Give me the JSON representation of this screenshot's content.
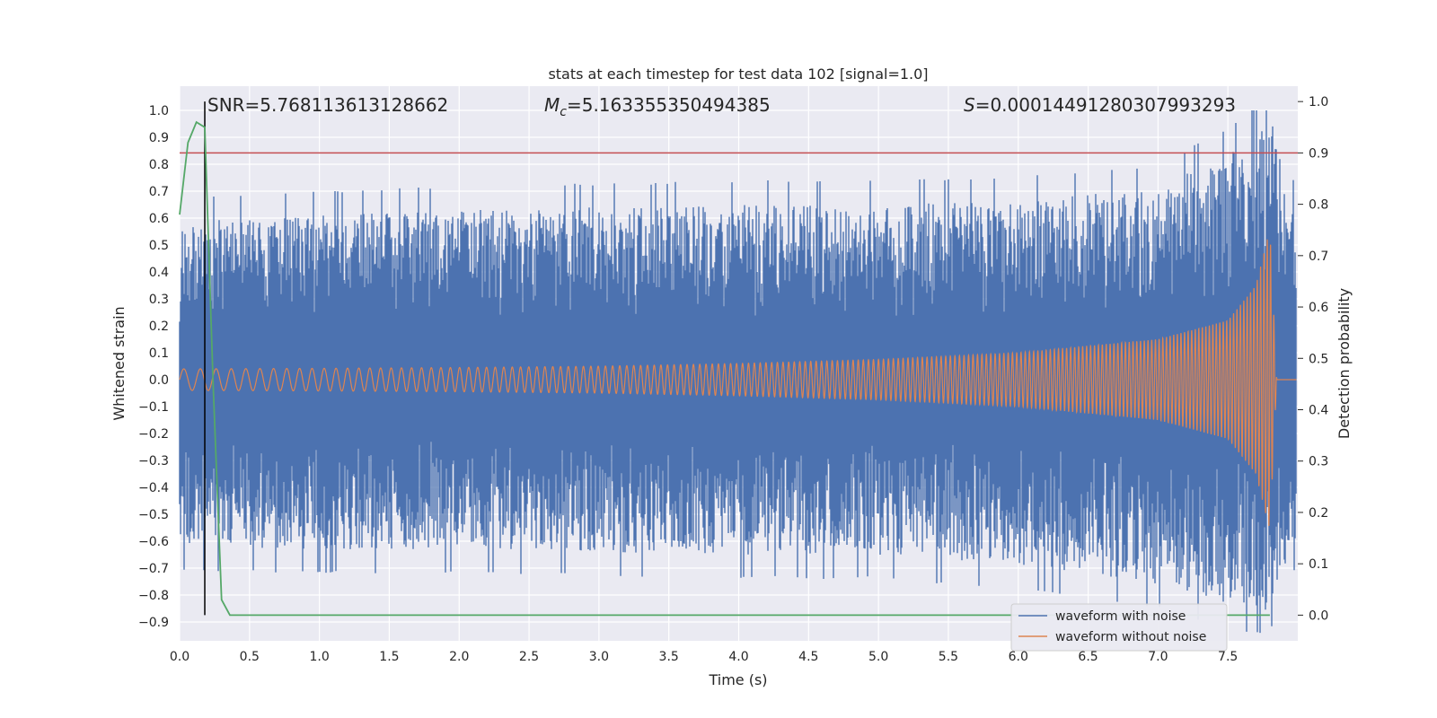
{
  "chart_data": {
    "type": "line",
    "title": "stats at each timestep for test data 102 [signal=1.0]",
    "xlabel": "Time (s)",
    "ylabel": "Whitened strain",
    "y2label": "Detection probability",
    "xlim": [
      0.0,
      8.0
    ],
    "ylim": [
      -0.97,
      1.09
    ],
    "y2lim": [
      -0.05,
      1.03
    ],
    "x_ticks": [
      0.0,
      0.5,
      1.0,
      1.5,
      2.0,
      2.5,
      3.0,
      3.5,
      4.0,
      4.5,
      5.0,
      5.5,
      6.0,
      6.5,
      7.0,
      7.5
    ],
    "x_tick_labels": [
      "0.0",
      "0.5",
      "1.0",
      "1.5",
      "2.0",
      "2.5",
      "3.0",
      "3.5",
      "4.0",
      "4.5",
      "5.0",
      "5.5",
      "6.0",
      "6.5",
      "7.0",
      "7.5"
    ],
    "y_ticks": [
      1.0,
      0.9,
      0.8,
      0.7,
      0.6,
      0.5,
      0.4,
      0.3,
      0.2,
      0.1,
      0.0,
      -0.1,
      -0.2,
      -0.3,
      -0.4,
      -0.5,
      -0.6,
      -0.7,
      -0.8,
      -0.9
    ],
    "y_tick_labels": [
      "1.0",
      "0.9",
      "0.8",
      "0.7",
      "0.6",
      "0.5",
      "0.4",
      "0.3",
      "0.2",
      "0.1",
      "0.0",
      "−0.1",
      "−0.2",
      "−0.3",
      "−0.4",
      "−0.5",
      "−0.6",
      "−0.7",
      "−0.8",
      "−0.9"
    ],
    "y2_ticks": [
      1.0,
      0.9,
      0.8,
      0.7,
      0.6,
      0.5,
      0.4,
      0.3,
      0.2,
      0.1,
      0.0
    ],
    "y2_tick_labels": [
      "1.0",
      "0.9",
      "0.8",
      "0.7",
      "0.6",
      "0.5",
      "0.4",
      "0.3",
      "0.2",
      "0.1",
      "0.0"
    ],
    "grid": true,
    "legend_position": "lower-right",
    "annotations": {
      "snr": "SNR=5.768113613128662",
      "mc_symbol": "M",
      "mc_sub": "c",
      "mc_value": "=5.163355350494385",
      "s_symbol": "S",
      "s_value": "=0.00014491280307993293"
    },
    "vertical_marker_x": 0.18,
    "threshold_probability": 0.9,
    "series": [
      {
        "name": "waveform with noise",
        "color": "#4c72b0",
        "envelope_description_points": {
          "x": [
            0.0,
            1.0,
            2.0,
            3.0,
            4.0,
            5.0,
            6.0,
            7.0,
            7.5,
            7.8,
            7.85,
            8.0
          ],
          "upper": [
            0.6,
            0.62,
            0.64,
            0.65,
            0.66,
            0.66,
            0.68,
            0.72,
            0.86,
            1.0,
            0.9,
            0.6
          ],
          "lower": [
            -0.63,
            -0.64,
            -0.64,
            -0.65,
            -0.66,
            -0.66,
            -0.7,
            -0.77,
            -0.85,
            -0.87,
            -0.78,
            -0.6
          ]
        }
      },
      {
        "name": "waveform without noise",
        "color": "#dd8452",
        "envelope_description_points": {
          "x": [
            0.0,
            1.0,
            2.0,
            3.0,
            4.0,
            5.0,
            6.0,
            7.0,
            7.5,
            7.7,
            7.8,
            7.85,
            8.0
          ],
          "amplitude": [
            0.04,
            0.042,
            0.045,
            0.05,
            0.06,
            0.075,
            0.1,
            0.15,
            0.22,
            0.35,
            0.56,
            0.0,
            0.0
          ]
        }
      },
      {
        "name": "detection probability",
        "color": "#55a868",
        "axis": "right",
        "x": [
          0.0,
          0.06,
          0.12,
          0.18,
          0.24,
          0.3,
          0.36,
          0.42,
          1.0,
          2.0,
          3.0,
          4.0,
          5.0,
          6.0,
          7.0,
          7.8
        ],
        "values": [
          0.78,
          0.92,
          0.96,
          0.95,
          0.45,
          0.03,
          0.0,
          0.0,
          0.0,
          0.0,
          0.0,
          0.0,
          0.0,
          0.0,
          0.0,
          0.0
        ]
      }
    ],
    "colors": {
      "background": "#eaeaf2",
      "grid": "#ffffff",
      "threshold": "#c44e52",
      "marker": "#000000"
    }
  }
}
